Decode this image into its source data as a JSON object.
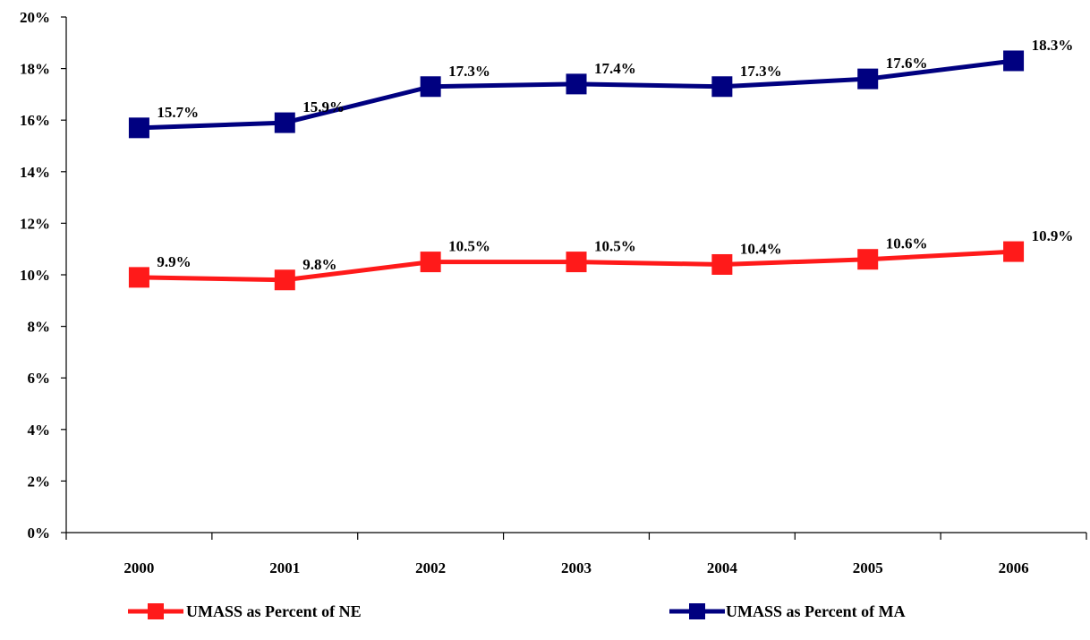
{
  "chart_data": {
    "type": "line",
    "title": "",
    "xlabel": "",
    "ylabel": "",
    "categories": [
      "2000",
      "2001",
      "2002",
      "2003",
      "2004",
      "2005",
      "2006"
    ],
    "ylim": [
      0,
      20
    ],
    "yticks": [
      "0%",
      "2%",
      "4%",
      "6%",
      "8%",
      "10%",
      "12%",
      "14%",
      "16%",
      "18%",
      "20%"
    ],
    "grid": false,
    "legend_position": "bottom",
    "series": [
      {
        "name": "UMASS as Percent of NE",
        "color": "#ff1a1a",
        "values": [
          9.9,
          9.8,
          10.5,
          10.5,
          10.4,
          10.6,
          10.9
        ],
        "labels": [
          "9.9%",
          "9.8%",
          "10.5%",
          "10.5%",
          "10.4%",
          "10.6%",
          "10.9%"
        ]
      },
      {
        "name": "UMASS as Percent of MA",
        "color": "#000080",
        "values": [
          15.7,
          15.9,
          17.3,
          17.4,
          17.3,
          17.6,
          18.3
        ],
        "labels": [
          "15.7%",
          "15.9%",
          "17.3%",
          "17.4%",
          "17.3%",
          "17.6%",
          "18.3%"
        ]
      }
    ]
  }
}
